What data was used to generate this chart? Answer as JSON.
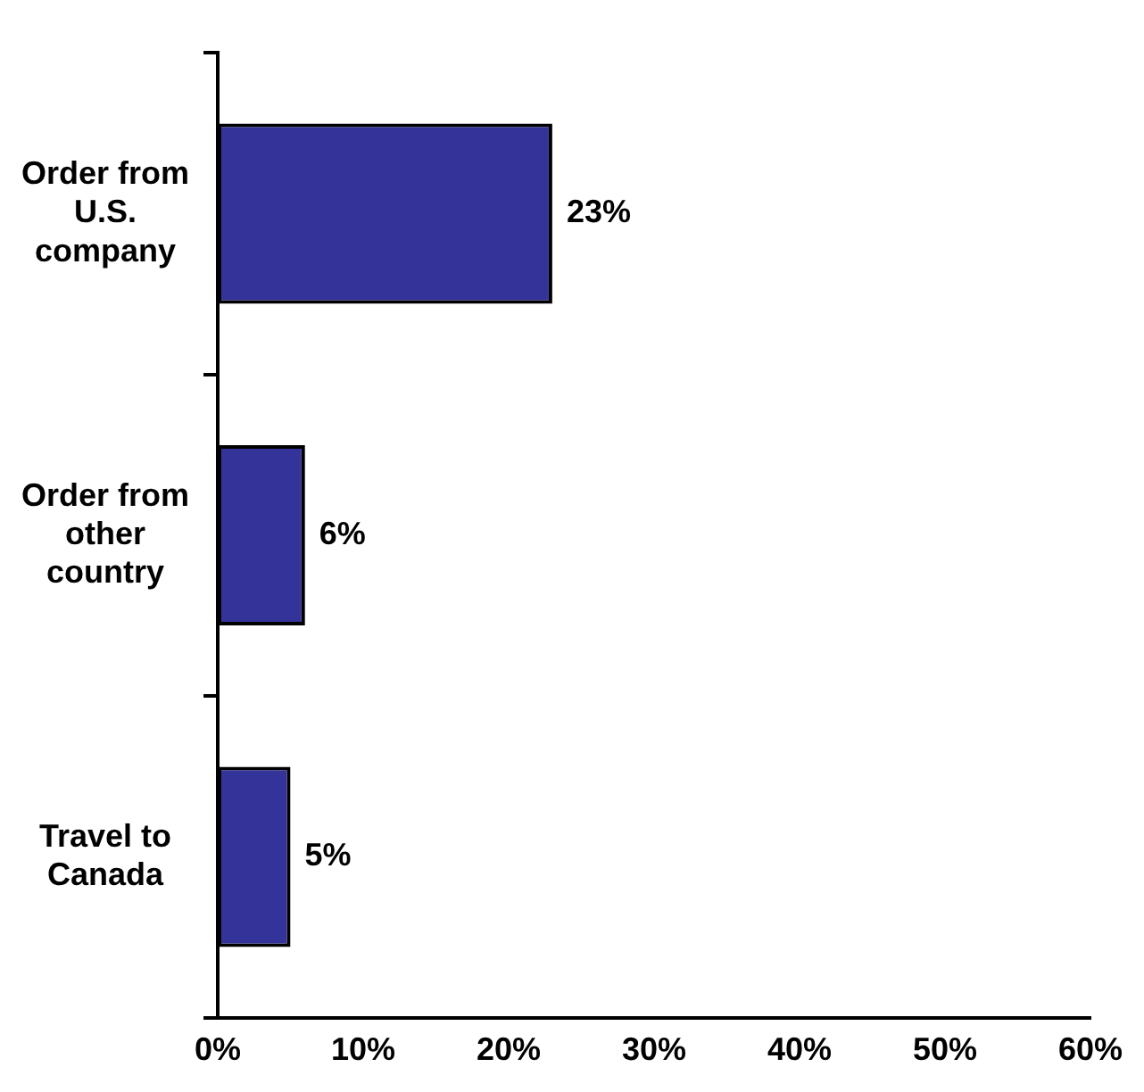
{
  "chart_data": {
    "type": "bar",
    "orientation": "horizontal",
    "categories": [
      "Order from U.S. company",
      "Order from other country",
      "Travel to Canada"
    ],
    "values": [
      23,
      6,
      5
    ],
    "color": "#333399",
    "value_labels": [
      "23%",
      "6%",
      "5%"
    ],
    "xlim": [
      0,
      60
    ],
    "xticks": [
      {
        "value": 0,
        "label": "0%"
      },
      {
        "value": 10,
        "label": "10%"
      },
      {
        "value": 20,
        "label": "20%"
      },
      {
        "value": 30,
        "label": "30%"
      },
      {
        "value": 40,
        "label": "40%"
      },
      {
        "value": 50,
        "label": "50%"
      },
      {
        "value": 60,
        "label": "60%"
      }
    ],
    "grid": false,
    "legend": false
  }
}
